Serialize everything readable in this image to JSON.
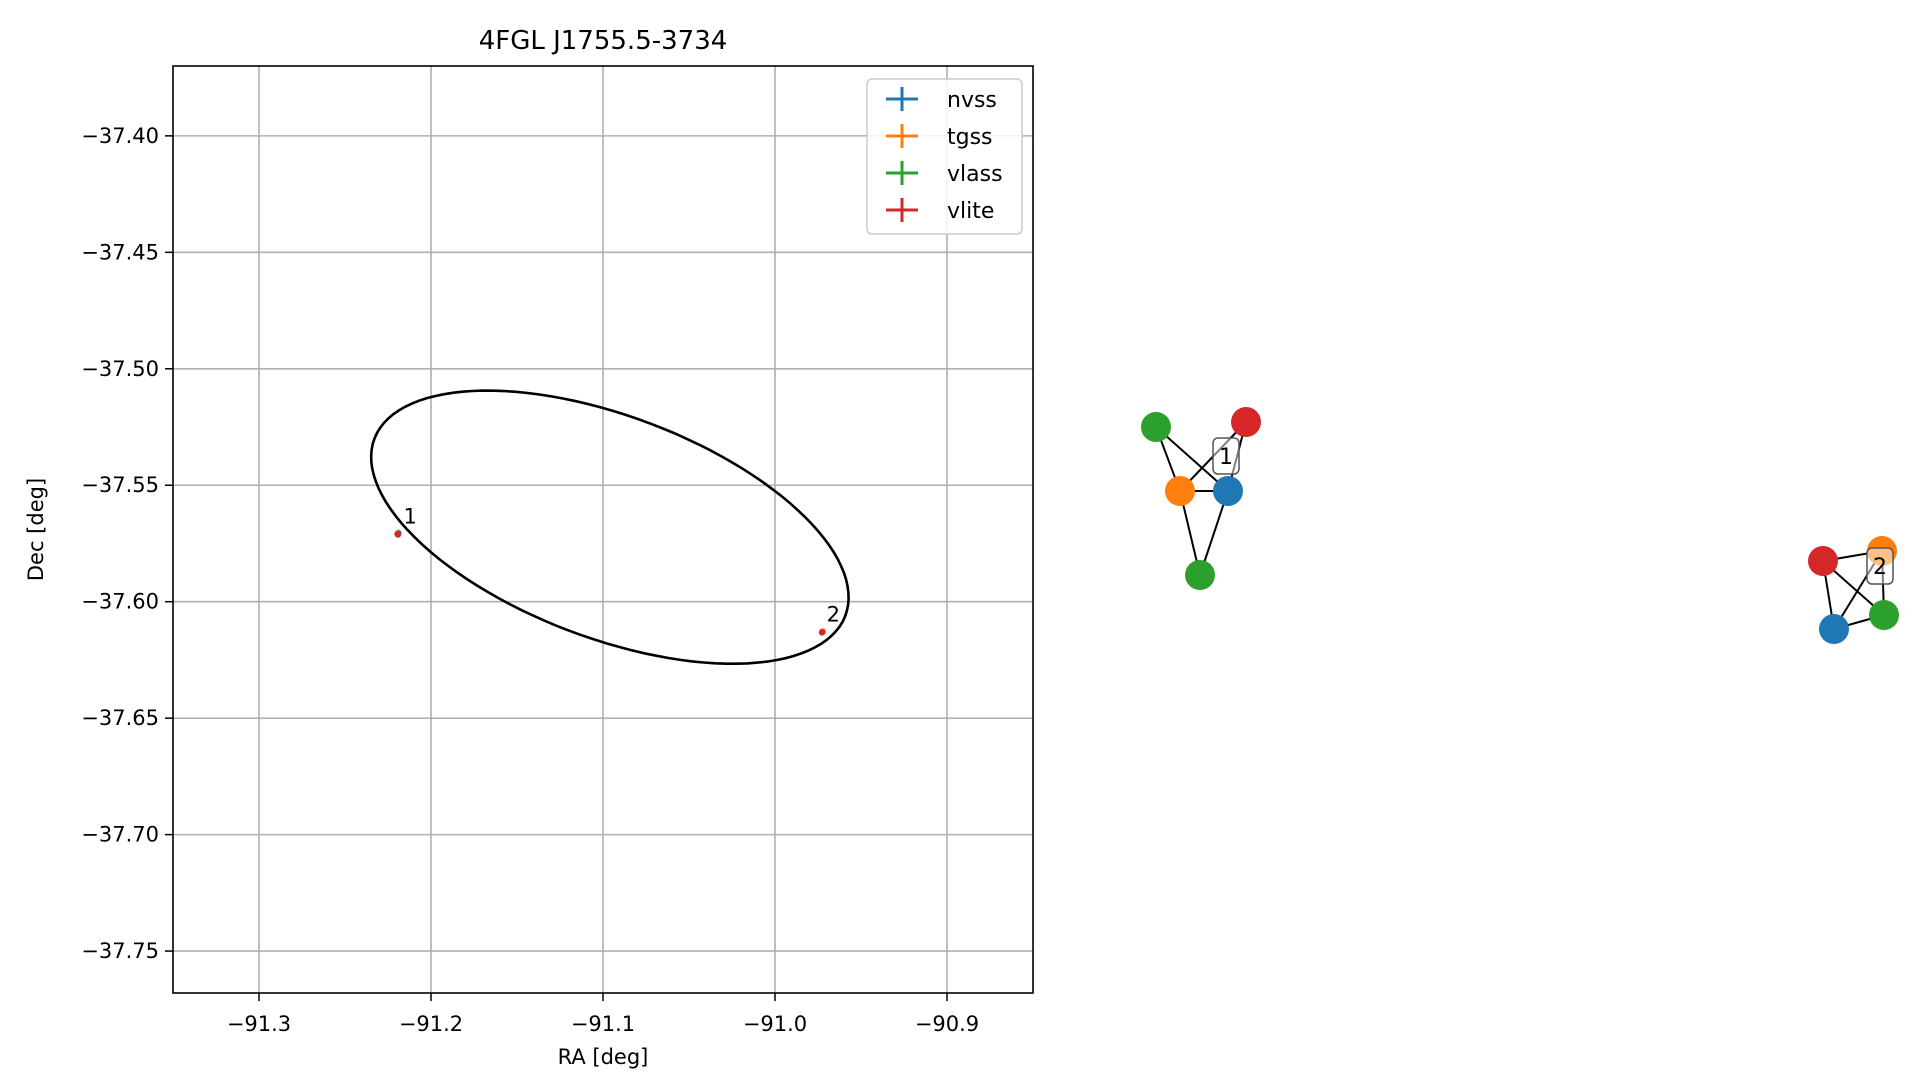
{
  "chart_data": [
    {
      "type": "scatter",
      "title": "4FGL J1755.5-3734",
      "xlabel": "RA [deg]",
      "ylabel": "Dec [deg]",
      "xlim": [
        -91.35,
        -90.85
      ],
      "ylim": [
        -37.768,
        -37.37
      ],
      "xticks": [
        -91.3,
        -91.2,
        -91.1,
        -91.0,
        -90.9
      ],
      "xtick_labels": [
        "−91.3",
        "−91.2",
        "−91.1",
        "−91.0",
        "−90.9"
      ],
      "yticks": [
        -37.4,
        -37.45,
        -37.5,
        -37.55,
        -37.6,
        -37.65,
        -37.7,
        -37.75
      ],
      "ytick_labels": [
        "−37.40",
        "−37.45",
        "−37.50",
        "−37.55",
        "−37.60",
        "−37.65",
        "−37.70",
        "−37.75"
      ],
      "grid": true,
      "legend_position": "top-right",
      "series": [
        {
          "name": "nvss",
          "color": "#1f77b4",
          "points": [
            {
              "x": -91.219,
              "y": -37.5705
            },
            {
              "x": -90.9725,
              "y": -37.613
            }
          ]
        },
        {
          "name": "tgss",
          "color": "#ff7f0e",
          "points": [
            {
              "x": -91.2195,
              "y": -37.5708
            },
            {
              "x": -90.9722,
              "y": -37.6128
            }
          ]
        },
        {
          "name": "vlass",
          "color": "#2ca02c",
          "points": [
            {
              "x": -91.2192,
              "y": -37.5712
            },
            {
              "x": -90.9727,
              "y": -37.6132
            }
          ]
        },
        {
          "name": "vlite",
          "color": "#d62728",
          "points": [
            {
              "x": -91.2193,
              "y": -37.571
            },
            {
              "x": -90.9726,
              "y": -37.6131
            }
          ]
        }
      ],
      "annotations": [
        {
          "text": "1",
          "x": -91.216,
          "y": -37.5665
        },
        {
          "text": "2",
          "x": -90.97,
          "y": -37.6085
        }
      ],
      "error_ellipse": {
        "center": [
          -91.096,
          -37.568
        ],
        "note": "localization ellipse drawn as black outline"
      }
    },
    {
      "type": "graph",
      "groups": [
        {
          "label": "1",
          "nodes": [
            {
              "survey": "vlass",
              "color": "#2ca02c"
            },
            {
              "survey": "vlite",
              "color": "#d62728"
            },
            {
              "survey": "tgss",
              "color": "#ff7f0e"
            },
            {
              "survey": "nvss",
              "color": "#1f77b4"
            },
            {
              "survey": "vlass",
              "color": "#2ca02c"
            }
          ],
          "edges": [
            [
              0,
              2
            ],
            [
              0,
              3
            ],
            [
              1,
              2
            ],
            [
              1,
              3
            ],
            [
              2,
              3
            ],
            [
              2,
              4
            ],
            [
              3,
              4
            ]
          ]
        },
        {
          "label": "2",
          "nodes": [
            {
              "survey": "vlite",
              "color": "#d62728"
            },
            {
              "survey": "tgss",
              "color": "#ff7f0e"
            },
            {
              "survey": "nvss",
              "color": "#1f77b4"
            },
            {
              "survey": "vlass",
              "color": "#2ca02c"
            }
          ],
          "edges": [
            [
              0,
              1
            ],
            [
              0,
              2
            ],
            [
              0,
              3
            ],
            [
              1,
              2
            ],
            [
              1,
              3
            ],
            [
              2,
              3
            ]
          ]
        }
      ]
    }
  ]
}
